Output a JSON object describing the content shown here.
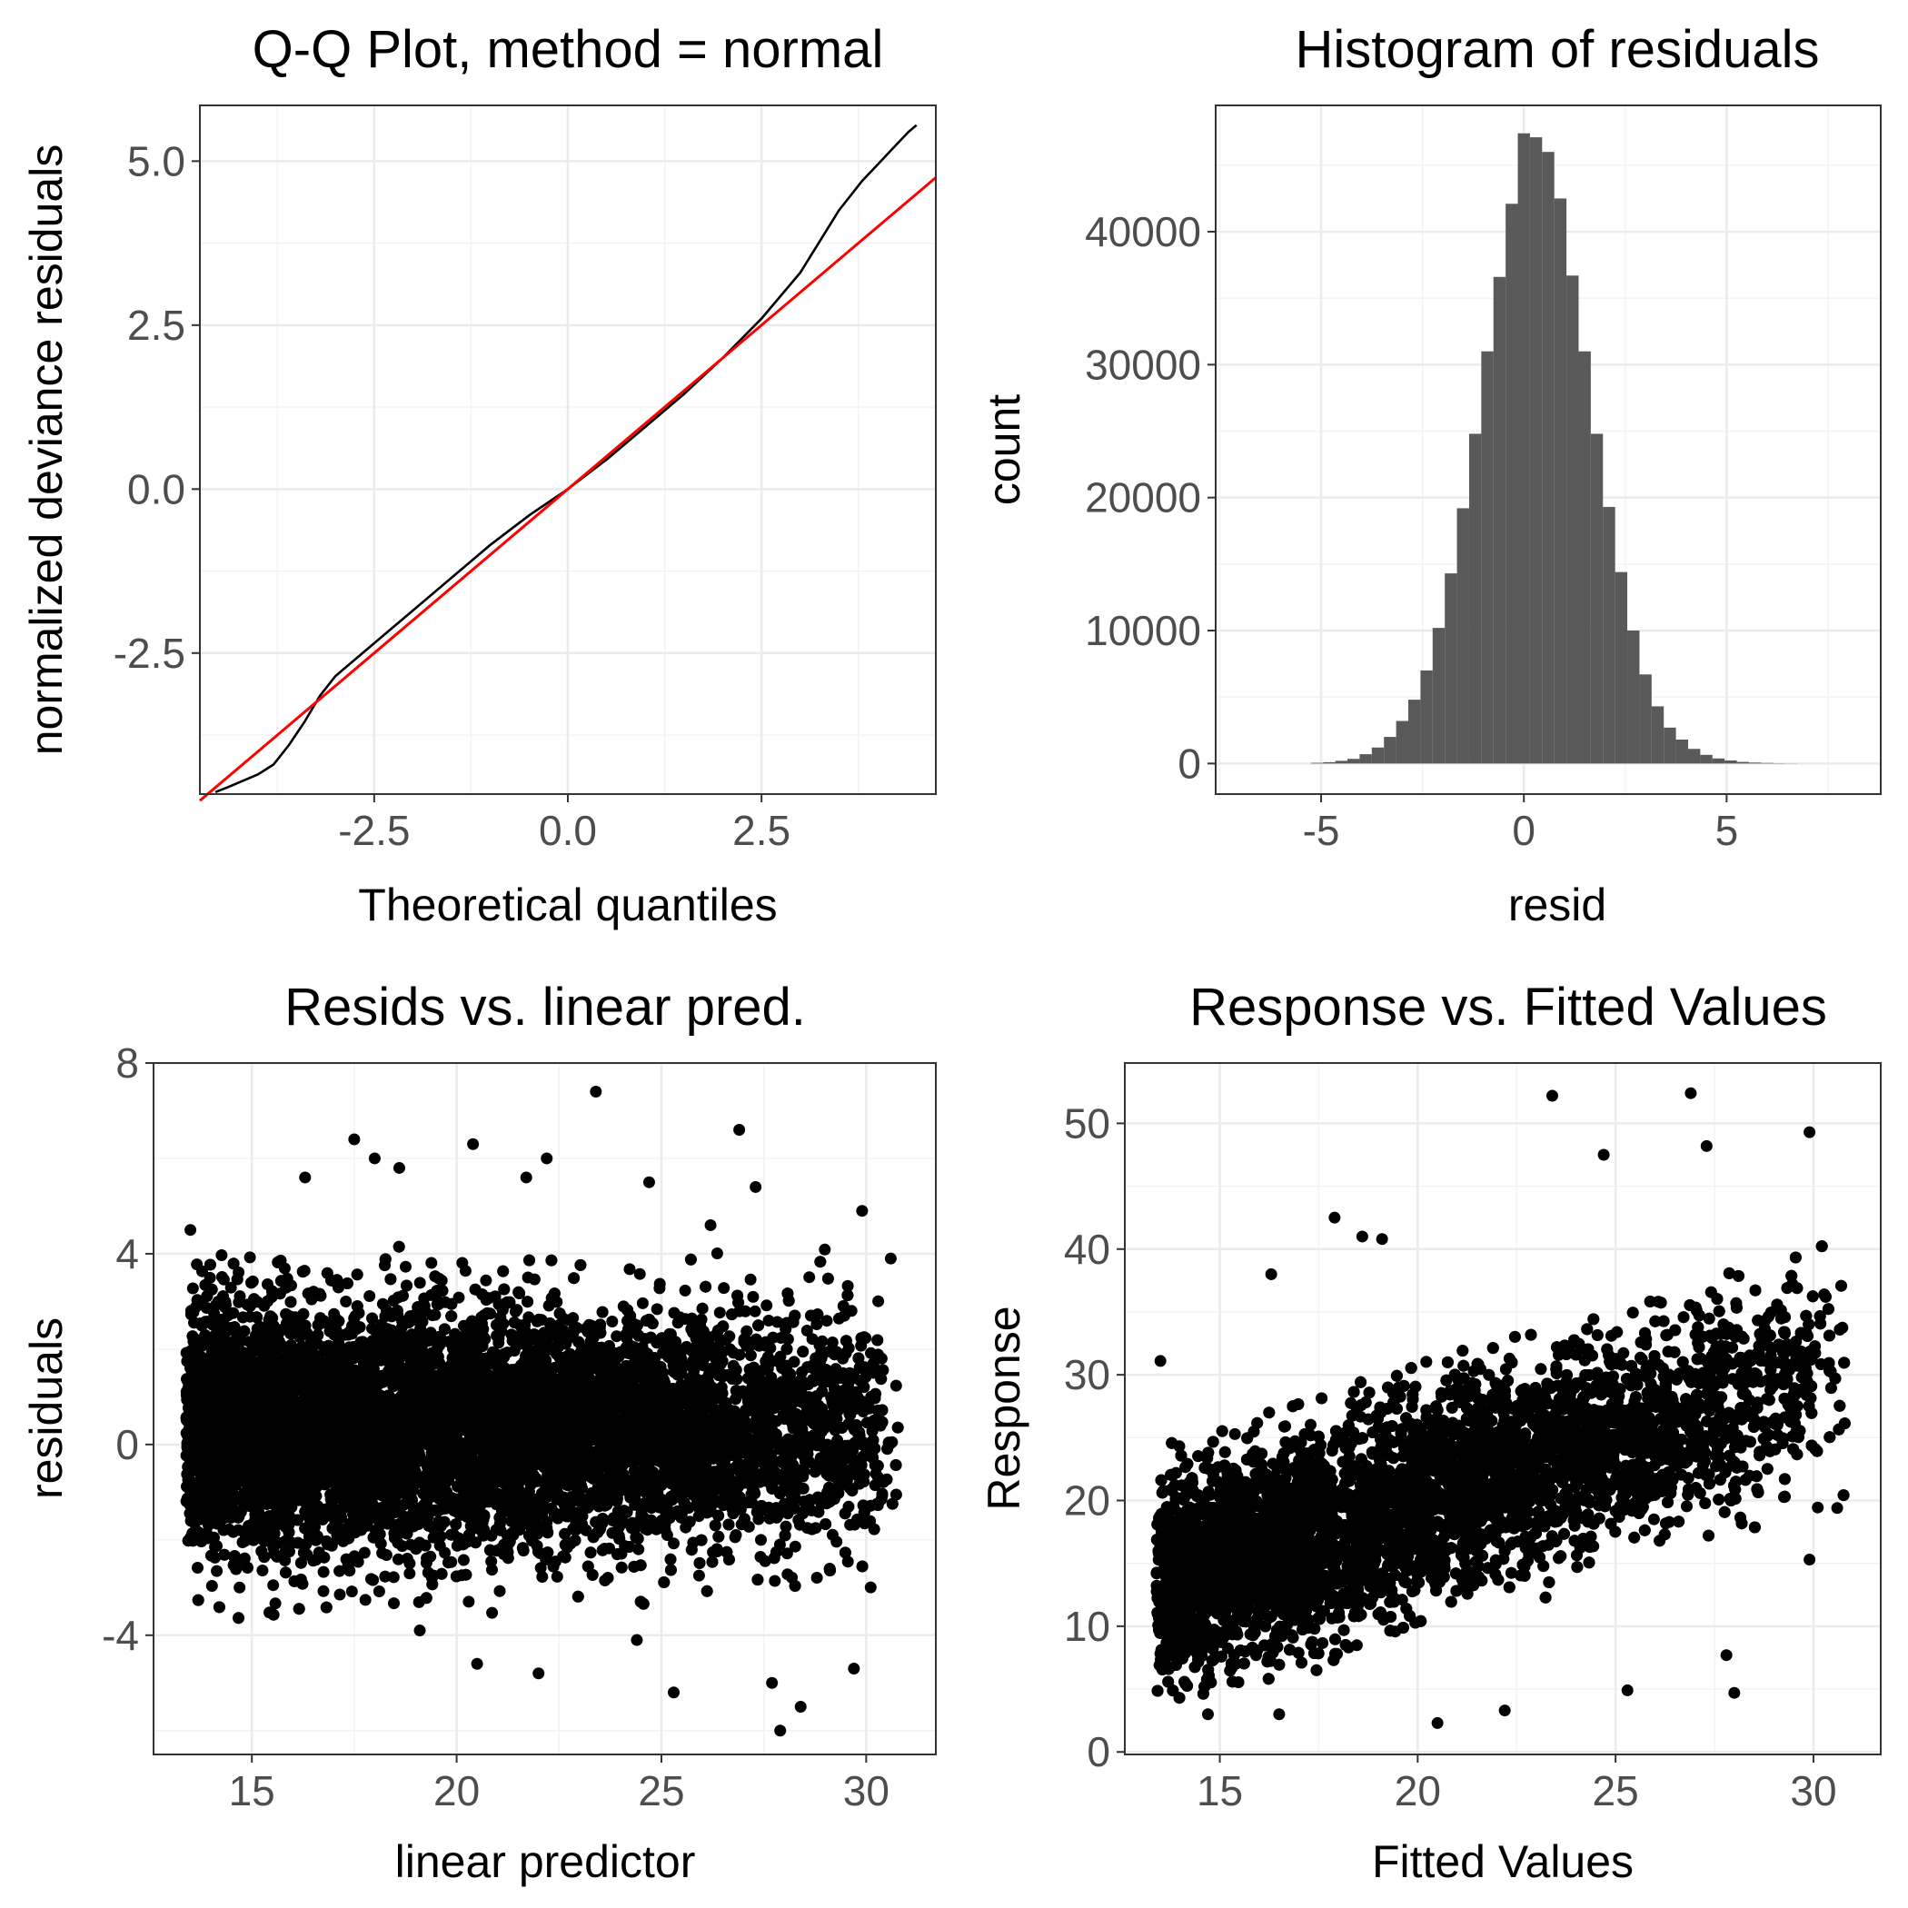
{
  "chart_data": [
    {
      "type": "line",
      "title": "Q-Q Plot, method = normal",
      "xlabel": "Theoretical quantiles",
      "ylabel": "normalized deviance residuals",
      "xlim": [
        -4.75,
        4.75
      ],
      "ylim": [
        -4.65,
        5.85
      ],
      "xticks": [
        -2.5,
        0.0,
        2.5
      ],
      "xtick_labels": [
        "-2.5",
        "0.0",
        "2.5"
      ],
      "yticks": [
        -2.5,
        0.0,
        2.5,
        5.0
      ],
      "ytick_labels": [
        "-2.5",
        "0.0",
        "2.5",
        "5.0"
      ],
      "grid": true,
      "series": [
        {
          "color": "#000000",
          "x": [
            -4.55,
            -4.4,
            -4.2,
            -4.0,
            -3.8,
            -3.6,
            -3.4,
            -3.2,
            -3.0,
            -2.8,
            -2.5,
            -2.0,
            -1.5,
            -1.0,
            -0.5,
            0.0,
            0.5,
            1.0,
            1.5,
            2.0,
            2.5,
            3.0,
            3.5,
            3.8,
            4.0,
            4.2,
            4.4,
            4.5
          ],
          "y": [
            -4.62,
            -4.55,
            -4.45,
            -4.35,
            -4.2,
            -3.9,
            -3.55,
            -3.15,
            -2.85,
            -2.65,
            -2.35,
            -1.85,
            -1.35,
            -0.85,
            -0.4,
            0.0,
            0.45,
            0.95,
            1.45,
            2.0,
            2.6,
            3.3,
            4.25,
            4.7,
            4.95,
            5.2,
            5.45,
            5.55
          ]
        },
        {
          "color": "#ff0000",
          "x": [
            -4.75,
            4.75
          ],
          "y": [
            -4.75,
            4.75
          ]
        }
      ]
    },
    {
      "type": "bar",
      "title": "Histogram of residuals",
      "xlabel": "resid",
      "ylabel": "count",
      "xlim": [
        -7.6,
        8.8
      ],
      "ylim": [
        -2300,
        49500
      ],
      "xticks": [
        -5,
        0,
        5
      ],
      "xtick_labels": [
        "-5",
        "0",
        "5"
      ],
      "yticks": [
        0,
        10000,
        20000,
        30000,
        40000
      ],
      "ytick_labels": [
        "0",
        "10000",
        "20000",
        "30000",
        "40000"
      ],
      "grid": true,
      "bar_color": "#595959",
      "bin_width": 0.3,
      "bin_centers": [
        -5.1,
        -4.8,
        -4.5,
        -4.2,
        -3.9,
        -3.6,
        -3.3,
        -3.0,
        -2.7,
        -2.4,
        -2.1,
        -1.8,
        -1.5,
        -1.2,
        -0.9,
        -0.6,
        -0.3,
        0.0,
        0.3,
        0.6,
        0.9,
        1.2,
        1.5,
        1.8,
        2.1,
        2.4,
        2.7,
        3.0,
        3.3,
        3.6,
        3.9,
        4.2,
        4.5,
        4.8,
        5.1,
        5.4,
        5.7,
        6.0,
        6.3,
        6.6
      ],
      "values": [
        50,
        100,
        200,
        350,
        700,
        1200,
        2000,
        3200,
        4800,
        7000,
        10200,
        14300,
        19200,
        24800,
        31000,
        36600,
        42100,
        47400,
        47100,
        46000,
        42500,
        36700,
        31000,
        24800,
        19300,
        14400,
        10000,
        6700,
        4300,
        2700,
        1800,
        1100,
        650,
        380,
        230,
        120,
        70,
        40,
        20,
        10
      ]
    },
    {
      "type": "scatter",
      "title": "Resids vs. linear pred.",
      "xlabel": "linear predictor",
      "ylabel": "residuals",
      "xlim": [
        12.6,
        31.7
      ],
      "ylim": [
        -6.5,
        8.0
      ],
      "xticks": [
        15,
        20,
        25,
        30
      ],
      "xtick_labels": [
        "15",
        "20",
        "25",
        "30"
      ],
      "yticks": [
        -4,
        0,
        4,
        8
      ],
      "ytick_labels": [
        "-4",
        "0",
        "4",
        "8"
      ],
      "grid": true,
      "color": "#000000",
      "cloud": {
        "x_range": [
          13.4,
          30.8
        ],
        "center": 0.3,
        "spread": 1.7
      },
      "outliers": [
        {
          "x": 23.4,
          "y": 7.4
        },
        {
          "x": 26.9,
          "y": 6.6
        },
        {
          "x": 17.5,
          "y": 6.4
        },
        {
          "x": 20.4,
          "y": 6.3
        },
        {
          "x": 18.0,
          "y": 6.0
        },
        {
          "x": 22.2,
          "y": 6.0
        },
        {
          "x": 18.6,
          "y": 5.8
        },
        {
          "x": 16.3,
          "y": 5.6
        },
        {
          "x": 21.7,
          "y": 5.6
        },
        {
          "x": 24.7,
          "y": 5.5
        },
        {
          "x": 27.3,
          "y": 5.4
        },
        {
          "x": 13.5,
          "y": 4.5
        },
        {
          "x": 29.9,
          "y": 4.9
        },
        {
          "x": 26.2,
          "y": 4.6
        },
        {
          "x": 30.6,
          "y": 3.9
        },
        {
          "x": 13.8,
          "y": 2.1
        },
        {
          "x": 14.7,
          "y": -3.0
        },
        {
          "x": 20.5,
          "y": -4.6
        },
        {
          "x": 22.0,
          "y": -4.8
        },
        {
          "x": 25.3,
          "y": -5.2
        },
        {
          "x": 27.7,
          "y": -5.0
        },
        {
          "x": 27.9,
          "y": -6.0
        },
        {
          "x": 28.4,
          "y": -5.5
        },
        {
          "x": 29.7,
          "y": -4.7
        },
        {
          "x": 19.1,
          "y": -3.9
        },
        {
          "x": 24.4,
          "y": -4.1
        }
      ]
    },
    {
      "type": "scatter",
      "title": "Response vs. Fitted Values",
      "xlabel": "Fitted Values",
      "ylabel": "Response",
      "xlim": [
        12.6,
        31.7
      ],
      "ylim": [
        -0.2,
        54.8
      ],
      "xticks": [
        15,
        20,
        25,
        30
      ],
      "xtick_labels": [
        "15",
        "20",
        "25",
        "30"
      ],
      "yticks": [
        0,
        10,
        20,
        30,
        40,
        50
      ],
      "ytick_labels": [
        "0",
        "10",
        "20",
        "30",
        "40",
        "50"
      ],
      "grid": true,
      "color": "#000000",
      "cloud": {
        "x_range": [
          13.4,
          30.8
        ],
        "spread": 5.5
      },
      "outliers": [
        {
          "x": 23.4,
          "y": 52.2
        },
        {
          "x": 26.9,
          "y": 52.4
        },
        {
          "x": 29.9,
          "y": 49.3
        },
        {
          "x": 27.3,
          "y": 48.2
        },
        {
          "x": 24.7,
          "y": 47.5
        },
        {
          "x": 17.9,
          "y": 42.5
        },
        {
          "x": 18.6,
          "y": 41.0
        },
        {
          "x": 19.1,
          "y": 40.8
        },
        {
          "x": 16.3,
          "y": 38.0
        },
        {
          "x": 13.5,
          "y": 31.1
        },
        {
          "x": 13.8,
          "y": 22.0
        },
        {
          "x": 14.7,
          "y": 3.0
        },
        {
          "x": 16.5,
          "y": 3.0
        },
        {
          "x": 20.5,
          "y": 2.3
        },
        {
          "x": 22.2,
          "y": 3.3
        },
        {
          "x": 25.3,
          "y": 4.9
        },
        {
          "x": 27.8,
          "y": 7.7
        },
        {
          "x": 28.0,
          "y": 4.7
        },
        {
          "x": 29.9,
          "y": 15.3
        },
        {
          "x": 30.6,
          "y": 19.4
        }
      ]
    }
  ]
}
